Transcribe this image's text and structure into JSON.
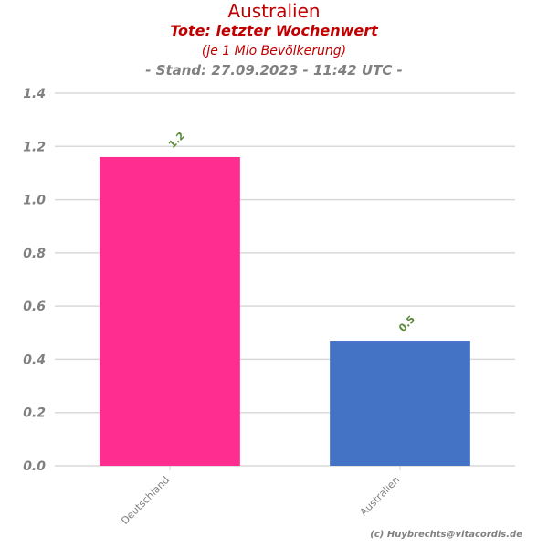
{
  "header": {
    "title": "Australien",
    "subtitle": "Tote: letzter Wochenwert",
    "subtitle2": "(je 1 Mio Bevölkerung)",
    "stand": "- Stand: 27.09.2023 - 11:42 UTC -"
  },
  "footer": {
    "credit": "(c) Huybrechts@vitacordis.de"
  },
  "colors": {
    "title": "#c00000",
    "gray": "#808080",
    "label": "#5a8a3a"
  },
  "chart_data": {
    "type": "bar",
    "categories": [
      "Deutschland",
      "Australien"
    ],
    "values": [
      1.16,
      0.47
    ],
    "data_labels": [
      "1.2",
      "0.5"
    ],
    "colors": [
      "#ff2d90",
      "#4472c4"
    ],
    "ylim": [
      0,
      1.4
    ],
    "yticks": [
      "0.0",
      "0.2",
      "0.4",
      "0.6",
      "0.8",
      "1.0",
      "1.2",
      "1.4"
    ],
    "grid": true,
    "legend": "none"
  }
}
